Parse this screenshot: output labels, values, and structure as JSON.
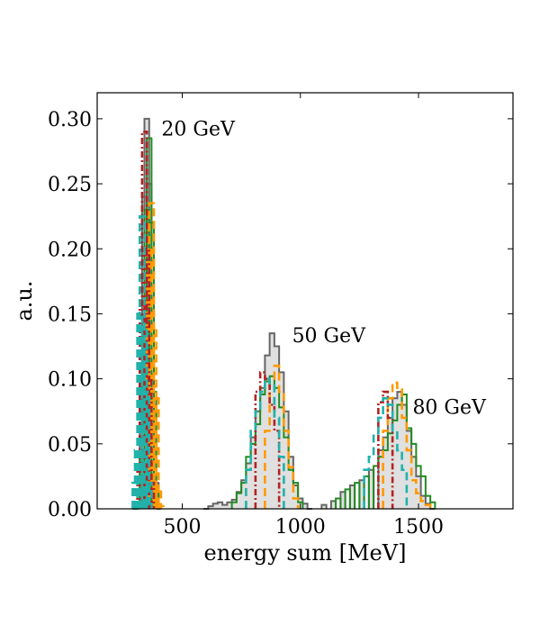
{
  "chart_data": {
    "type": "histogram",
    "xlabel": "energy sum [MeV]",
    "ylabel": "a.u.",
    "xlim": [
      140,
      1900
    ],
    "ylim": [
      0,
      0.32
    ],
    "xticks": [
      500,
      1000,
      1500
    ],
    "yticks": [
      0.0,
      0.05,
      0.1,
      0.15,
      0.2,
      0.25,
      0.3
    ],
    "ytick_labels": [
      "0.00",
      "0.05",
      "0.10",
      "0.15",
      "0.20",
      "0.25",
      "0.30"
    ],
    "xtick_labels": [
      "500",
      "1000",
      "1500"
    ],
    "grid": false,
    "legend": "none",
    "bins": {
      "start": 150,
      "end": 1900,
      "width": 20
    },
    "annotations": [
      {
        "text": "20 GeV",
        "x": 412,
        "y": 0.287
      },
      {
        "text": "50 GeV",
        "x": 965,
        "y": 0.128
      },
      {
        "text": "80 GeV",
        "x": 1475,
        "y": 0.073
      }
    ],
    "peaks": [
      {
        "name": "20 GeV",
        "mean": 360
      },
      {
        "name": "50 GeV",
        "mean": 890
      },
      {
        "name": "80 GeV",
        "mean": 1420
      }
    ],
    "series": [
      {
        "id": "grey",
        "style": "filled-step",
        "color": "#666666",
        "fill": "#e0e0e0",
        "points": [
          [
            300,
            0.0
          ],
          [
            320,
            0.005
          ],
          [
            330,
            0.06
          ],
          [
            340,
            0.24
          ],
          [
            350,
            0.3
          ],
          [
            360,
            0.25
          ],
          [
            370,
            0.17
          ],
          [
            380,
            0.08
          ],
          [
            390,
            0.02
          ],
          [
            400,
            0.0
          ],
          [
            600,
            0.0
          ],
          [
            620,
            0.002
          ],
          [
            640,
            0.004
          ],
          [
            660,
            0.005
          ],
          [
            680,
            0.003
          ],
          [
            700,
            0.005
          ],
          [
            720,
            0.007
          ],
          [
            740,
            0.013
          ],
          [
            760,
            0.022
          ],
          [
            780,
            0.035
          ],
          [
            800,
            0.055
          ],
          [
            820,
            0.075
          ],
          [
            840,
            0.093
          ],
          [
            860,
            0.118
          ],
          [
            880,
            0.135
          ],
          [
            900,
            0.125
          ],
          [
            920,
            0.105
          ],
          [
            940,
            0.075
          ],
          [
            960,
            0.04
          ],
          [
            980,
            0.018
          ],
          [
            1000,
            0.008
          ],
          [
            1020,
            0.004
          ],
          [
            1040,
            0.0
          ],
          [
            1100,
            0.003
          ],
          [
            1140,
            0.006
          ],
          [
            1180,
            0.013
          ],
          [
            1220,
            0.018
          ],
          [
            1260,
            0.022
          ],
          [
            1300,
            0.03
          ],
          [
            1340,
            0.045
          ],
          [
            1360,
            0.055
          ],
          [
            1380,
            0.07
          ],
          [
            1400,
            0.085
          ],
          [
            1420,
            0.09
          ],
          [
            1440,
            0.08
          ],
          [
            1460,
            0.06
          ],
          [
            1480,
            0.04
          ],
          [
            1500,
            0.025
          ],
          [
            1520,
            0.01
          ],
          [
            1540,
            0.004
          ],
          [
            1560,
            0.0
          ]
        ]
      },
      {
        "id": "green",
        "style": "step",
        "color": "#228B22",
        "points": [
          [
            300,
            0.0
          ],
          [
            320,
            0.002
          ],
          [
            330,
            0.045
          ],
          [
            340,
            0.11
          ],
          [
            350,
            0.23
          ],
          [
            360,
            0.285
          ],
          [
            370,
            0.22
          ],
          [
            380,
            0.09
          ],
          [
            390,
            0.013
          ],
          [
            400,
            0.002
          ],
          [
            720,
            0.005
          ],
          [
            740,
            0.012
          ],
          [
            760,
            0.02
          ],
          [
            780,
            0.04
          ],
          [
            800,
            0.05
          ],
          [
            820,
            0.065
          ],
          [
            840,
            0.088
          ],
          [
            860,
            0.098
          ],
          [
            880,
            0.102
          ],
          [
            900,
            0.093
          ],
          [
            920,
            0.078
          ],
          [
            940,
            0.055
          ],
          [
            960,
            0.03
          ],
          [
            980,
            0.02
          ],
          [
            1000,
            0.005
          ],
          [
            1160,
            0.008
          ],
          [
            1200,
            0.015
          ],
          [
            1240,
            0.02
          ],
          [
            1280,
            0.025
          ],
          [
            1320,
            0.033
          ],
          [
            1340,
            0.04
          ],
          [
            1360,
            0.045
          ],
          [
            1380,
            0.058
          ],
          [
            1400,
            0.068
          ],
          [
            1420,
            0.08
          ],
          [
            1440,
            0.088
          ],
          [
            1460,
            0.062
          ],
          [
            1480,
            0.05
          ],
          [
            1500,
            0.033
          ],
          [
            1520,
            0.025
          ],
          [
            1540,
            0.01
          ],
          [
            1560,
            0.005
          ]
        ]
      },
      {
        "id": "orange",
        "style": "dashed-step",
        "color": "#ff9900",
        "points": [
          [
            340,
            0.02
          ],
          [
            350,
            0.11
          ],
          [
            360,
            0.2
          ],
          [
            370,
            0.235
          ],
          [
            380,
            0.14
          ],
          [
            390,
            0.085
          ],
          [
            400,
            0.015
          ],
          [
            410,
            0.002
          ],
          [
            860,
            0.06
          ],
          [
            880,
            0.1
          ],
          [
            900,
            0.11
          ],
          [
            920,
            0.09
          ],
          [
            940,
            0.06
          ],
          [
            960,
            0.032
          ],
          [
            980,
            0.008
          ],
          [
            1360,
            0.06
          ],
          [
            1380,
            0.085
          ],
          [
            1400,
            0.097
          ],
          [
            1420,
            0.092
          ],
          [
            1440,
            0.07
          ],
          [
            1460,
            0.045
          ],
          [
            1480,
            0.022
          ],
          [
            1500,
            0.012
          ],
          [
            1520,
            0.006
          ],
          [
            1540,
            0.003
          ]
        ]
      },
      {
        "id": "red",
        "style": "dashdot-step",
        "color": "#b22222",
        "points": [
          [
            320,
            0.03
          ],
          [
            330,
            0.16
          ],
          [
            340,
            0.29
          ],
          [
            350,
            0.2
          ],
          [
            360,
            0.1
          ],
          [
            370,
            0.02
          ],
          [
            820,
            0.09
          ],
          [
            840,
            0.105
          ],
          [
            860,
            0.1
          ],
          [
            880,
            0.08
          ],
          [
            900,
            0.06
          ],
          [
            1340,
            0.082
          ],
          [
            1360,
            0.09
          ],
          [
            1380,
            0.07
          ]
        ]
      },
      {
        "id": "teal",
        "style": "dashed-step",
        "color": "#20b2aa",
        "points": [
          [
            300,
            0.02
          ],
          [
            310,
            0.045
          ],
          [
            320,
            0.15
          ],
          [
            330,
            0.225
          ],
          [
            340,
            0.14
          ],
          [
            350,
            0.09
          ],
          [
            360,
            0.02
          ],
          [
            780,
            0.03
          ],
          [
            800,
            0.06
          ],
          [
            820,
            0.075
          ],
          [
            840,
            0.09
          ],
          [
            860,
            0.1
          ],
          [
            880,
            0.095
          ],
          [
            900,
            0.07
          ],
          [
            920,
            0.04
          ],
          [
            1280,
            0.03
          ],
          [
            1300,
            0.04
          ],
          [
            1320,
            0.058
          ],
          [
            1340,
            0.07
          ],
          [
            1360,
            0.085
          ],
          [
            1380,
            0.08
          ],
          [
            1400,
            0.06
          ],
          [
            1420,
            0.045
          ],
          [
            1440,
            0.03
          ]
        ]
      }
    ]
  }
}
